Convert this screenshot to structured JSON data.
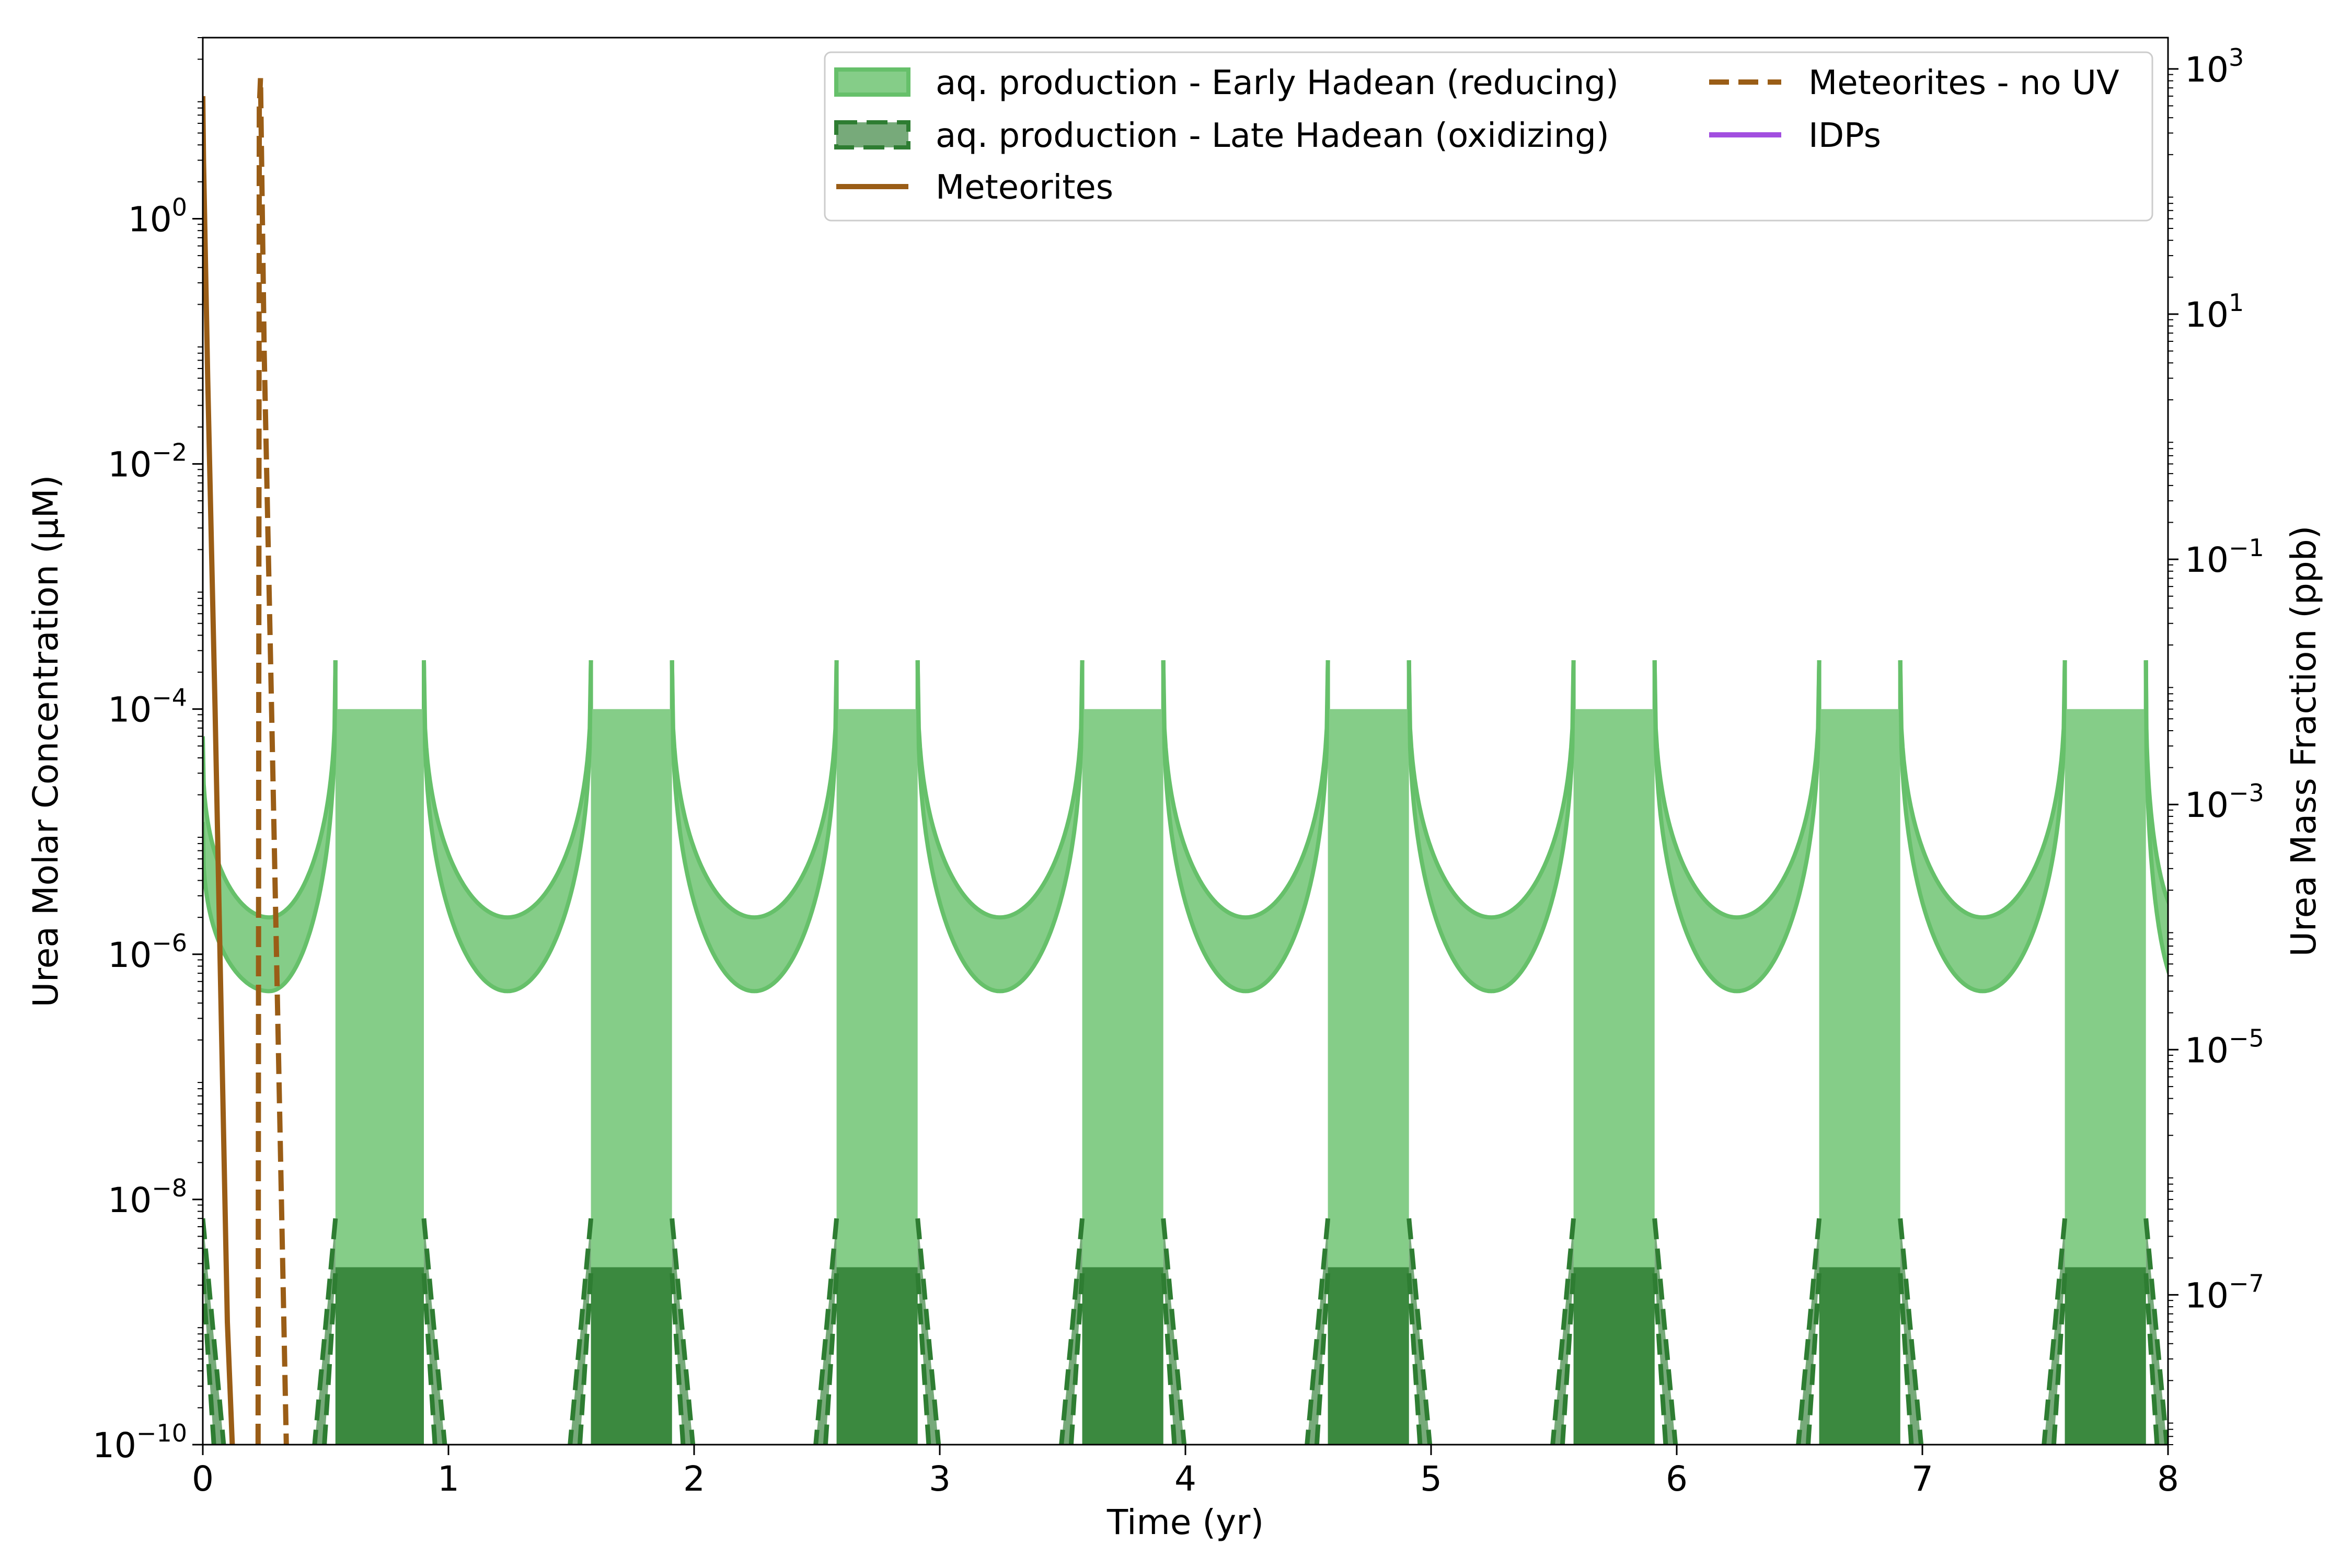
{
  "chart_data": {
    "type": "area",
    "xlabel": "Time (yr)",
    "ylabel_left": "Urea Molar Concentration (μM)",
    "ylabel_right": "Urea Mass Fraction (ppb)",
    "xlim": [
      0,
      8
    ],
    "ylim_left": [
      1e-10,
      30
    ],
    "ylim_right": [
      6e-09,
      1800
    ],
    "yscale": "log",
    "x_ticks": [
      "0",
      "1",
      "2",
      "3",
      "4",
      "5",
      "6",
      "7",
      "8"
    ],
    "y_left_ticks": [
      {
        "base": "10",
        "exp": "−10",
        "value": 1e-10
      },
      {
        "base": "10",
        "exp": "−8",
        "value": 1e-08
      },
      {
        "base": "10",
        "exp": "−6",
        "value": 1e-06
      },
      {
        "base": "10",
        "exp": "−4",
        "value": 0.0001
      },
      {
        "base": "10",
        "exp": "−2",
        "value": 0.01
      },
      {
        "base": "10",
        "exp": "0",
        "value": 1
      }
    ],
    "y_right_ticks": [
      {
        "base": "10",
        "exp": "−7",
        "value": 1e-07
      },
      {
        "base": "10",
        "exp": "−5",
        "value": 1e-05
      },
      {
        "base": "10",
        "exp": "−3",
        "value": 0.001
      },
      {
        "base": "10",
        "exp": "−1",
        "value": 0.1
      },
      {
        "base": "10",
        "exp": "1",
        "value": 10
      },
      {
        "base": "10",
        "exp": "3",
        "value": 1000
      }
    ],
    "grid": false,
    "legend_position": "top-right",
    "legend": [
      "aq. production - Early Hadean (reducing)",
      "aq. production - Late Hadean (oxidizing)",
      "Meteorites",
      "Meteorites - no UV",
      "IDPs"
    ],
    "series": [
      {
        "name": "aq. production - Early Hadean (reducing)",
        "kind": "band",
        "color": "#66c06a",
        "cycle_period_yr": 1.0,
        "dry_phase_yr": [
          [
            0.54,
            0.9
          ],
          [
            1.58,
            1.91
          ],
          [
            2.58,
            2.91
          ],
          [
            3.58,
            3.91
          ],
          [
            4.58,
            4.91
          ],
          [
            5.58,
            5.91
          ],
          [
            6.58,
            6.91
          ],
          [
            7.58,
            7.91
          ]
        ],
        "plateau_upper": 0.0001,
        "peak_upper": 0.00025,
        "wet_phase_min_upper": 2e-06,
        "wet_phase_min_lower": 5e-07
      },
      {
        "name": "aq. production - Late Hadean (oxidizing)",
        "kind": "band",
        "color": "#2e7d32",
        "dry_phase_yr": [
          [
            0.54,
            0.9
          ],
          [
            1.58,
            1.91
          ],
          [
            2.58,
            2.91
          ],
          [
            3.58,
            3.91
          ],
          [
            4.58,
            4.91
          ],
          [
            5.58,
            5.91
          ],
          [
            6.58,
            6.91
          ],
          [
            7.58,
            7.91
          ]
        ],
        "plateau_upper": 2.8e-09,
        "peak_upper": 7e-09
      },
      {
        "name": "Meteorites",
        "kind": "line",
        "color": "#9a5d16",
        "style": "solid",
        "x": [
          0.0,
          0.003,
          0.02,
          0.05,
          0.08,
          0.1,
          0.12
        ],
        "y": [
          10,
          3,
          0.05,
          0.0001,
          1e-07,
          1e-09,
          1e-10
        ]
      },
      {
        "name": "Meteorites - no UV",
        "kind": "line",
        "color": "#9a5d16",
        "style": "dashed",
        "x": [
          0.225,
          0.23,
          0.235,
          0.25,
          0.28,
          0.32,
          0.34
        ],
        "y": [
          1e-10,
          8,
          14,
          0.08,
          0.0001,
          1e-08,
          1e-10
        ]
      },
      {
        "name": "IDPs",
        "kind": "line",
        "color": "#a24ee0",
        "style": "solid",
        "x": [],
        "y": []
      }
    ]
  }
}
